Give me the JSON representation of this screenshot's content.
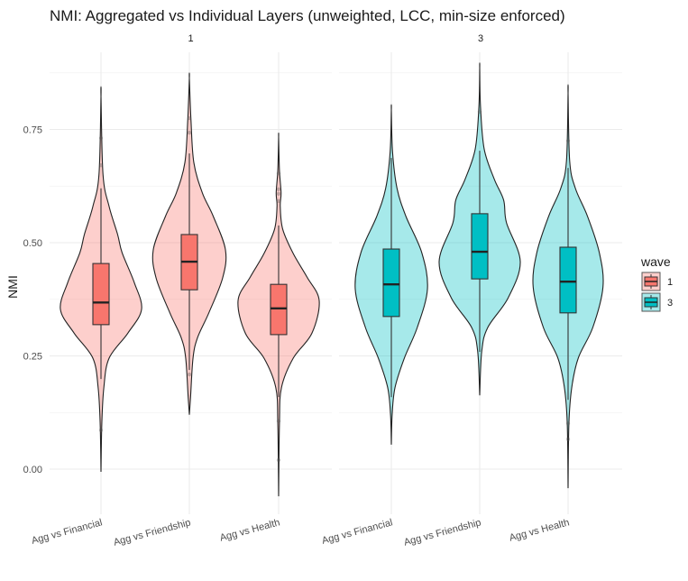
{
  "chart_data": {
    "type": "violin",
    "title": "NMI: Aggregated vs Individual Layers (unweighted, LCC, min-size enforced)",
    "xlabel": "",
    "ylabel": "NMI",
    "ylim": [
      -0.1,
      0.9
    ],
    "yticks": [
      0.0,
      0.25,
      0.5,
      0.75
    ],
    "ytick_labels": [
      "0.00",
      "0.25",
      "0.50",
      "0.75"
    ],
    "yminor": [
      0.125,
      0.375,
      0.625,
      0.875
    ],
    "grid": true,
    "categories": [
      "Agg vs Financial",
      "Agg vs Friendship",
      "Agg vs Health"
    ],
    "legend": {
      "title": "wave",
      "position": "right",
      "entries": [
        {
          "label": "1",
          "color": "#F8766D"
        },
        {
          "label": "3",
          "color": "#00BFC4"
        }
      ]
    },
    "facets": [
      {
        "label": "1",
        "wave": "1",
        "color": "#F8766D",
        "violins": [
          {
            "category": "Agg vs Financial",
            "range": [
              -0.006,
              0.823
            ],
            "box": {
              "lower_whisker": 0.199,
              "q1": 0.319,
              "median": 0.368,
              "q3": 0.454,
              "upper_whisker": 0.62
            },
            "outliers": [
              0.731,
              0.671,
              0.086
            ],
            "density": [
              [
                -0.006,
                0
              ],
              [
                0.1,
                0.02
              ],
              [
                0.18,
                0.07
              ],
              [
                0.245,
                0.2
              ],
              [
                0.3,
                0.66
              ],
              [
                0.353,
                1
              ],
              [
                0.412,
                0.82
              ],
              [
                0.478,
                0.52
              ],
              [
                0.518,
                0.41
              ],
              [
                0.58,
                0.2
              ],
              [
                0.65,
                0.05
              ],
              [
                0.823,
                0
              ]
            ]
          },
          {
            "category": "Agg vs Friendship",
            "range": [
              0.12,
              0.863
            ],
            "box": {
              "lower_whisker": 0.219,
              "q1": 0.396,
              "median": 0.458,
              "q3": 0.518,
              "upper_whisker": 0.697
            },
            "outliers": [
              0.775,
              0.743,
              0.209
            ],
            "density": [
              [
                0.12,
                0
              ],
              [
                0.16,
                0.03
              ],
              [
                0.245,
                0.09
              ],
              [
                0.29,
                0.2
              ],
              [
                0.345,
                0.48
              ],
              [
                0.422,
                0.82
              ],
              [
                0.484,
                0.89
              ],
              [
                0.558,
                0.59
              ],
              [
                0.61,
                0.32
              ],
              [
                0.677,
                0.11
              ],
              [
                0.77,
                0.04
              ],
              [
                0.863,
                0
              ]
            ]
          },
          {
            "category": "Agg vs Health",
            "range": [
              -0.06,
              0.733
            ],
            "box": {
              "lower_whisker": 0.159,
              "q1": 0.297,
              "median": 0.355,
              "q3": 0.408,
              "upper_whisker": 0.538
            },
            "outliers": [
              0.653,
              0.618,
              0.608,
              0.592,
              0.106,
              0.02
            ],
            "density": [
              [
                -0.06,
                0
              ],
              [
                0.1,
                0.02
              ],
              [
                0.18,
                0.07
              ],
              [
                0.245,
                0.36
              ],
              [
                0.3,
                0.82
              ],
              [
                0.372,
                1
              ],
              [
                0.424,
                0.7
              ],
              [
                0.476,
                0.36
              ],
              [
                0.53,
                0.1
              ],
              [
                0.58,
                0.04
              ],
              [
                0.61,
                0.06
              ],
              [
                0.66,
                0.02
              ],
              [
                0.733,
                0
              ]
            ]
          }
        ]
      },
      {
        "label": "3",
        "wave": "3",
        "color": "#00BFC4",
        "violins": [
          {
            "category": "Agg vs Financial",
            "range": [
              0.054,
              0.793
            ],
            "box": {
              "lower_whisker": 0.159,
              "q1": 0.337,
              "median": 0.408,
              "q3": 0.486,
              "upper_whisker": 0.687
            },
            "outliers": [],
            "density": [
              [
                0.054,
                0
              ],
              [
                0.12,
                0.02
              ],
              [
                0.18,
                0.09
              ],
              [
                0.245,
                0.32
              ],
              [
                0.313,
                0.64
              ],
              [
                0.398,
                0.89
              ],
              [
                0.478,
                0.75
              ],
              [
                0.558,
                0.36
              ],
              [
                0.62,
                0.14
              ],
              [
                0.7,
                0.03
              ],
              [
                0.793,
                0
              ]
            ]
          },
          {
            "category": "Agg vs Friendship",
            "range": [
              0.163,
              0.886
            ],
            "box": {
              "lower_whisker": 0.259,
              "q1": 0.42,
              "median": 0.48,
              "q3": 0.564,
              "upper_whisker": 0.703
            },
            "outliers": [
              0.789
            ],
            "density": [
              [
                0.163,
                0
              ],
              [
                0.26,
                0.05
              ],
              [
                0.313,
                0.2
              ],
              [
                0.378,
                0.7
              ],
              [
                0.458,
                1
              ],
              [
                0.544,
                0.66
              ],
              [
                0.594,
                0.59
              ],
              [
                0.64,
                0.36
              ],
              [
                0.707,
                0.11
              ],
              [
                0.8,
                0.02
              ],
              [
                0.886,
                0
              ]
            ]
          },
          {
            "category": "Agg vs Health",
            "range": [
              -0.042,
              0.83
            ],
            "box": {
              "lower_whisker": 0.153,
              "q1": 0.345,
              "median": 0.414,
              "q3": 0.49,
              "upper_whisker": 0.665
            },
            "outliers": [
              0.725,
              0.101,
              0.066
            ],
            "density": [
              [
                -0.042,
                0
              ],
              [
                0.1,
                0.02
              ],
              [
                0.18,
                0.09
              ],
              [
                0.245,
                0.25
              ],
              [
                0.313,
                0.61
              ],
              [
                0.402,
                0.86
              ],
              [
                0.478,
                0.77
              ],
              [
                0.558,
                0.48
              ],
              [
                0.62,
                0.18
              ],
              [
                0.68,
                0.04
              ],
              [
                0.83,
                0
              ]
            ]
          }
        ]
      }
    ]
  }
}
